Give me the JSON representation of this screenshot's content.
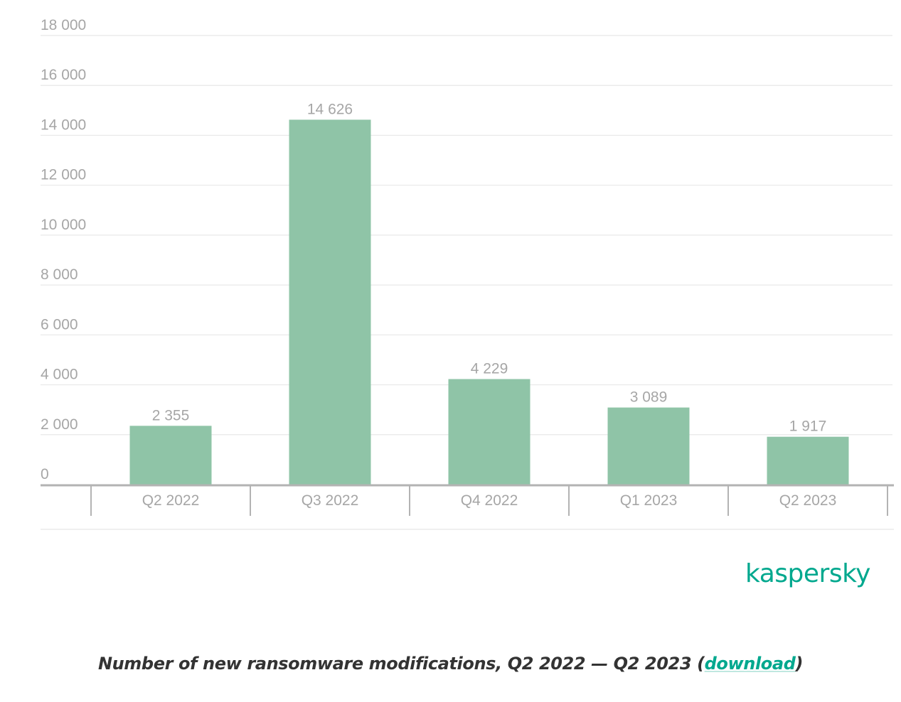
{
  "chart_data": {
    "type": "bar",
    "categories": [
      "Q2 2022",
      "Q3 2022",
      "Q4 2022",
      "Q1 2023",
      "Q2 2023"
    ],
    "values": [
      2355,
      14626,
      4229,
      3089,
      1917
    ],
    "value_labels": [
      "2 355",
      "14 626",
      "4 229",
      "3 089",
      "1 917"
    ],
    "yticks": [
      0,
      2000,
      4000,
      6000,
      8000,
      10000,
      12000,
      14000,
      16000,
      18000
    ],
    "ytick_labels": [
      "0",
      "2 000",
      "4 000",
      "6 000",
      "8 000",
      "10 000",
      "12 000",
      "14 000",
      "16 000",
      "18 000"
    ],
    "ylim": [
      0,
      18000
    ],
    "title": "",
    "xlabel": "",
    "ylabel": "",
    "grid": true,
    "legend": "none",
    "bar_color": "#8fc4a7",
    "label_color": "#a6a6a6",
    "grid_color": "#e8e8e8",
    "axis_color": "#b3b3b3"
  },
  "logo": {
    "text": "kaspersky",
    "color": "#00a88e"
  },
  "caption": {
    "prefix": "Number of new ransomware modifications, Q2 2022 — Q2 2023 (",
    "link_text": "download",
    "suffix": ")"
  }
}
